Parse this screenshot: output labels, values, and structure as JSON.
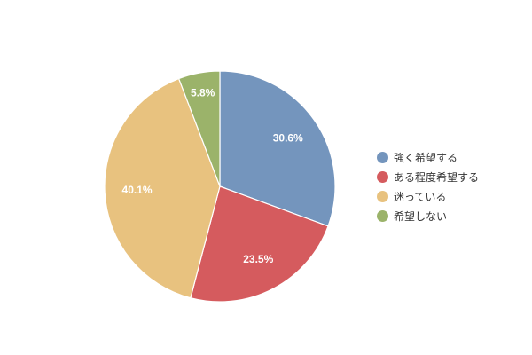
{
  "chart_data": {
    "type": "pie",
    "title": "",
    "categories": [
      "強く希望する",
      "ある程度希望する",
      "迷っている",
      "希望しない"
    ],
    "values": [
      30.6,
      23.5,
      40.1,
      5.8
    ],
    "data_labels": [
      "30.6%",
      "23.5%",
      "40.1%",
      "5.8%"
    ],
    "colors": [
      "#7495bd",
      "#d55b5e",
      "#e8c27f",
      "#9bb36a"
    ],
    "start_angle_deg": 0,
    "direction": "clockwise",
    "legend_position": "right"
  }
}
